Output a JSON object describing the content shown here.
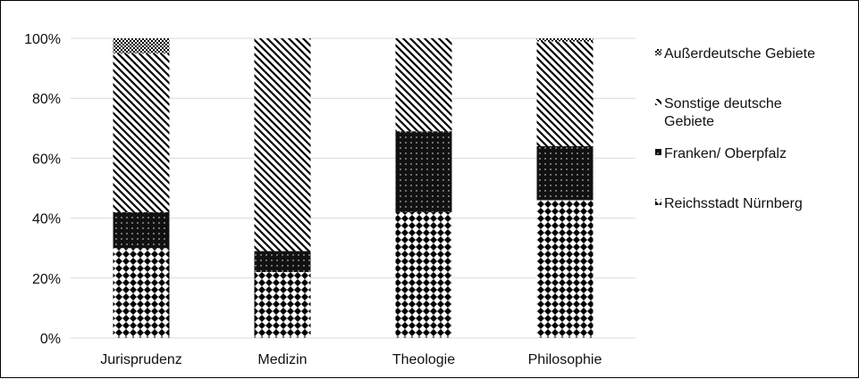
{
  "chart_data": {
    "type": "bar",
    "stacked": true,
    "percent_stacked": true,
    "title": "",
    "xlabel": "",
    "ylabel": "",
    "ylim": [
      0,
      100
    ],
    "yticks": [
      "0%",
      "20%",
      "40%",
      "60%",
      "80%",
      "100%"
    ],
    "grid": true,
    "legend_position": "right",
    "categories": [
      "Jurisprudenz",
      "Medizin",
      "Theologie",
      "Philosophie"
    ],
    "series": [
      {
        "name": "Reichsstadt Nürnberg",
        "values": [
          30,
          22,
          42,
          46
        ],
        "pattern": "dots"
      },
      {
        "name": "Franken/ Oberpfalz",
        "values": [
          12,
          7,
          27,
          18
        ],
        "pattern": "dark"
      },
      {
        "name": "Sonstige deutsche Gebiete",
        "values": [
          53,
          71,
          31,
          35
        ],
        "pattern": "diagonal"
      },
      {
        "name": "Außerdeutsche Gebiete",
        "values": [
          5,
          0,
          0,
          1
        ],
        "pattern": "checker"
      }
    ],
    "legend_order": [
      3,
      2,
      1,
      0
    ]
  }
}
